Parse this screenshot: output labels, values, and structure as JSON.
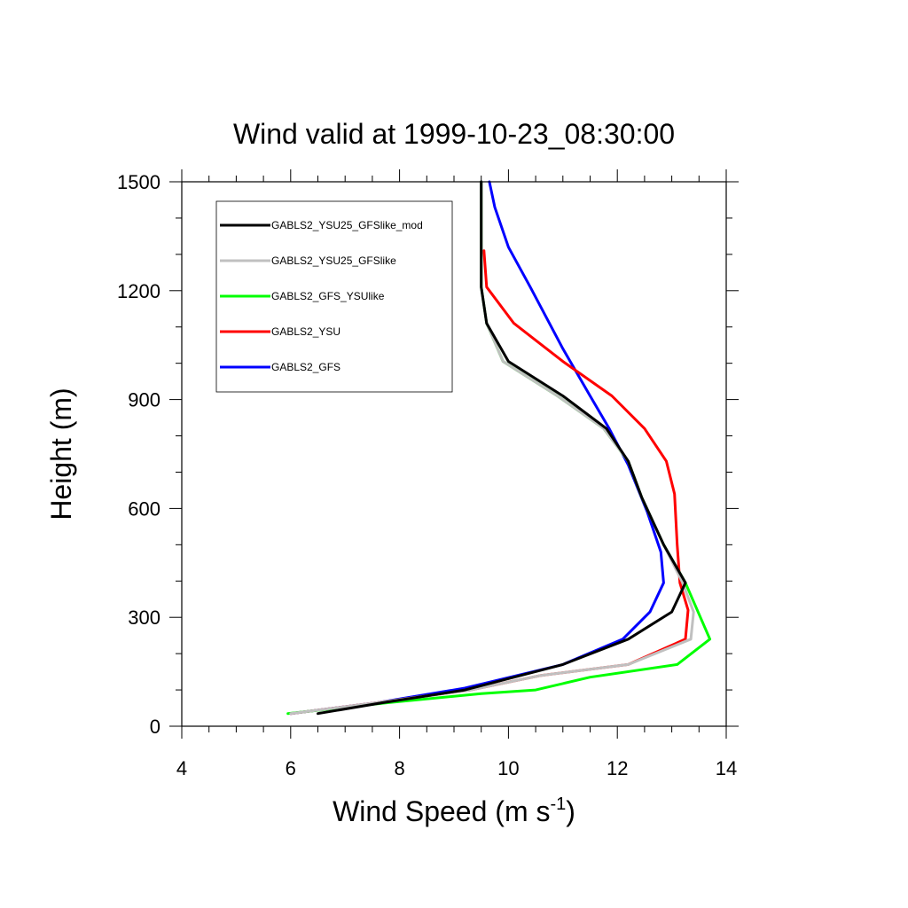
{
  "chart_data": {
    "type": "line",
    "title": "Wind valid at 1999-10-23_08:30:00",
    "xlabel_main": "Wind Speed (m s",
    "xlabel_sup": "-1",
    "xlabel_tail": ")",
    "ylabel": "Height (m)",
    "xlim": [
      4,
      14
    ],
    "ylim": [
      0,
      1500
    ],
    "xticks": [
      4,
      6,
      8,
      10,
      12,
      14
    ],
    "yticks": [
      0,
      300,
      600,
      900,
      1200,
      1500
    ],
    "grid": false,
    "legend_position": "top-left",
    "series": [
      {
        "name": "GABLS2_YSU25_GFSlike_mod",
        "color": "#000000",
        "x": [
          6.5,
          7.7,
          9.2,
          11.0,
          12.2,
          13.0,
          13.25,
          12.85,
          12.45,
          12.2,
          11.8,
          11.0,
          10.0,
          9.6,
          9.5,
          9.5,
          9.5
        ],
        "y": [
          35,
          65,
          100,
          170,
          240,
          315,
          395,
          500,
          630,
          730,
          820,
          910,
          1005,
          1110,
          1210,
          1300,
          1500
        ]
      },
      {
        "name": "GABLS2_YSU25_GFSlike",
        "color": "#c0c0c0",
        "x": [
          6.0,
          7.6,
          9.3,
          10.6,
          12.2,
          13.35,
          13.4,
          13.2,
          12.85,
          12.45,
          12.2,
          11.75,
          10.9,
          9.9,
          9.6,
          9.5,
          9.5,
          9.5
        ],
        "y": [
          35,
          65,
          100,
          140,
          170,
          240,
          315,
          395,
          500,
          630,
          730,
          820,
          910,
          1005,
          1110,
          1210,
          1300,
          1500
        ]
      },
      {
        "name": "GABLS2_GFS_YSUlike",
        "color": "#00ff00",
        "x": [
          5.95,
          7.8,
          9.5,
          10.5,
          11.5,
          13.1,
          13.7,
          13.25,
          12.85,
          12.45,
          12.2,
          11.75,
          10.9,
          9.9,
          9.6,
          9.5,
          9.5,
          9.5
        ],
        "y": [
          35,
          65,
          90,
          100,
          135,
          170,
          240,
          395,
          500,
          630,
          730,
          820,
          910,
          1005,
          1110,
          1210,
          1300,
          1500
        ]
      },
      {
        "name": "GABLS2_YSU",
        "color": "#ff0000",
        "x": [
          6.0,
          7.6,
          9.3,
          10.6,
          12.2,
          13.25,
          13.3,
          13.15,
          13.1,
          13.05,
          12.9,
          12.5,
          11.9,
          11.0,
          10.1,
          9.6,
          9.55
        ],
        "y": [
          35,
          65,
          100,
          140,
          170,
          240,
          320,
          395,
          500,
          640,
          730,
          820,
          910,
          1005,
          1110,
          1210,
          1310
        ]
      },
      {
        "name": "GABLS2_GFS",
        "color": "#0000ff",
        "x": [
          6.0,
          7.6,
          9.2,
          11.0,
          12.1,
          12.6,
          12.85,
          12.8,
          12.55,
          12.2,
          11.85,
          11.5,
          11.0,
          10.4,
          10.0,
          9.75,
          9.65
        ],
        "y": [
          35,
          65,
          105,
          170,
          240,
          315,
          395,
          480,
          590,
          720,
          820,
          910,
          1040,
          1210,
          1320,
          1430,
          1500
        ]
      }
    ]
  }
}
